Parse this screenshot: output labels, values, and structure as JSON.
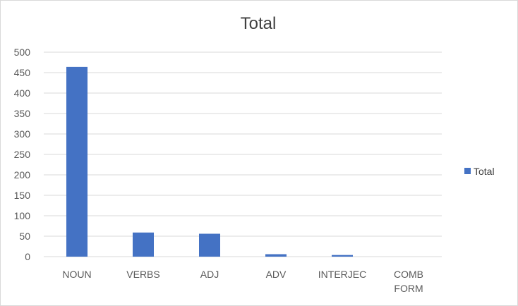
{
  "chart_data": {
    "type": "bar",
    "title": "Total",
    "categories": [
      [
        "NOUN"
      ],
      [
        "VERBS"
      ],
      [
        "ADJ"
      ],
      [
        "ADV"
      ],
      [
        "INTERJEC"
      ],
      [
        "COMB",
        "FORM"
      ]
    ],
    "series": [
      {
        "name": "Total",
        "values": [
          464,
          59,
          56,
          6,
          4,
          0
        ],
        "color": "#4472c4"
      }
    ],
    "ylim": [
      0,
      500
    ],
    "yticks": [
      0,
      50,
      100,
      150,
      200,
      250,
      300,
      350,
      400,
      450,
      500
    ],
    "grid": true,
    "legend": "right",
    "xlabel": "",
    "ylabel": ""
  }
}
